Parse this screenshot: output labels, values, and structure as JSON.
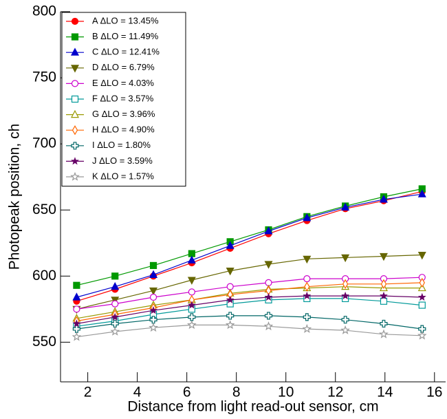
{
  "chart_data": {
    "type": "line",
    "x_label": "Distance from light read-out sensor, cm",
    "y_label": "Photopeak position, ch",
    "x": [
      1.55,
      3.1,
      4.65,
      6.2,
      7.75,
      9.3,
      10.85,
      12.4,
      13.95,
      15.5
    ],
    "xlim": [
      0.9,
      16.45
    ],
    "xticks": [
      2,
      4,
      6,
      8,
      10,
      12,
      14,
      16
    ],
    "ylim": [
      520,
      800
    ],
    "yticks": [
      550,
      600,
      650,
      700,
      750,
      800
    ],
    "legend": "top-left",
    "series": [
      {
        "name": "A ΔLO = 13.45%",
        "color": "#ff0000",
        "marker": "circle",
        "values": [
          581,
          590,
          600,
          610,
          621,
          632,
          642,
          651,
          657,
          664
        ]
      },
      {
        "name": "B ΔLO = 11.49%",
        "color": "#009900",
        "marker": "square",
        "values": [
          593,
          600,
          608,
          617,
          626,
          635,
          645,
          653,
          660,
          666
        ]
      },
      {
        "name": "C ΔLO = 12.41%",
        "color": "#0000cc",
        "marker": "triangle",
        "values": [
          584,
          592,
          601,
          612,
          623,
          634,
          644,
          652,
          658,
          662
        ]
      },
      {
        "name": "D ΔLO = 6.79%",
        "color": "#666600",
        "marker": "triangle-down",
        "values": [
          575,
          582,
          589,
          597,
          604,
          609,
          613,
          614,
          615,
          616
        ]
      },
      {
        "name": "E ΔLO = 4.03%",
        "color": "#cc00cc",
        "marker": "open-circle",
        "values": [
          575,
          579,
          584,
          588,
          592,
          595,
          598,
          598,
          598,
          599
        ]
      },
      {
        "name": "F ΔLO = 3.57%",
        "color": "#009999",
        "marker": "open-square",
        "values": [
          562,
          566,
          571,
          575,
          579,
          582,
          583,
          583,
          581,
          578
        ]
      },
      {
        "name": "G ΔLO = 3.96%",
        "color": "#999900",
        "marker": "open-triangle",
        "values": [
          568,
          573,
          578,
          582,
          587,
          590,
          591,
          592,
          591,
          591
        ]
      },
      {
        "name": "H ΔLO = 4.90%",
        "color": "#ff6600",
        "marker": "open-diamond",
        "values": [
          566,
          571,
          576,
          582,
          586,
          589,
          592,
          594,
          594,
          595
        ]
      },
      {
        "name": "I ΔLO = 1.80%",
        "color": "#006666",
        "marker": "open-cross",
        "values": [
          560,
          564,
          567,
          569,
          570,
          570,
          569,
          567,
          564,
          560
        ]
      },
      {
        "name": "J ΔLO = 3.59%",
        "color": "#660066",
        "marker": "star",
        "values": [
          564,
          569,
          574,
          578,
          582,
          584,
          585,
          585,
          585,
          584
        ]
      },
      {
        "name": "K ΔLO = 1.57%",
        "color": "#999999",
        "marker": "open-star",
        "values": [
          554,
          558,
          561,
          563,
          563,
          562,
          560,
          559,
          556,
          555
        ]
      }
    ]
  }
}
